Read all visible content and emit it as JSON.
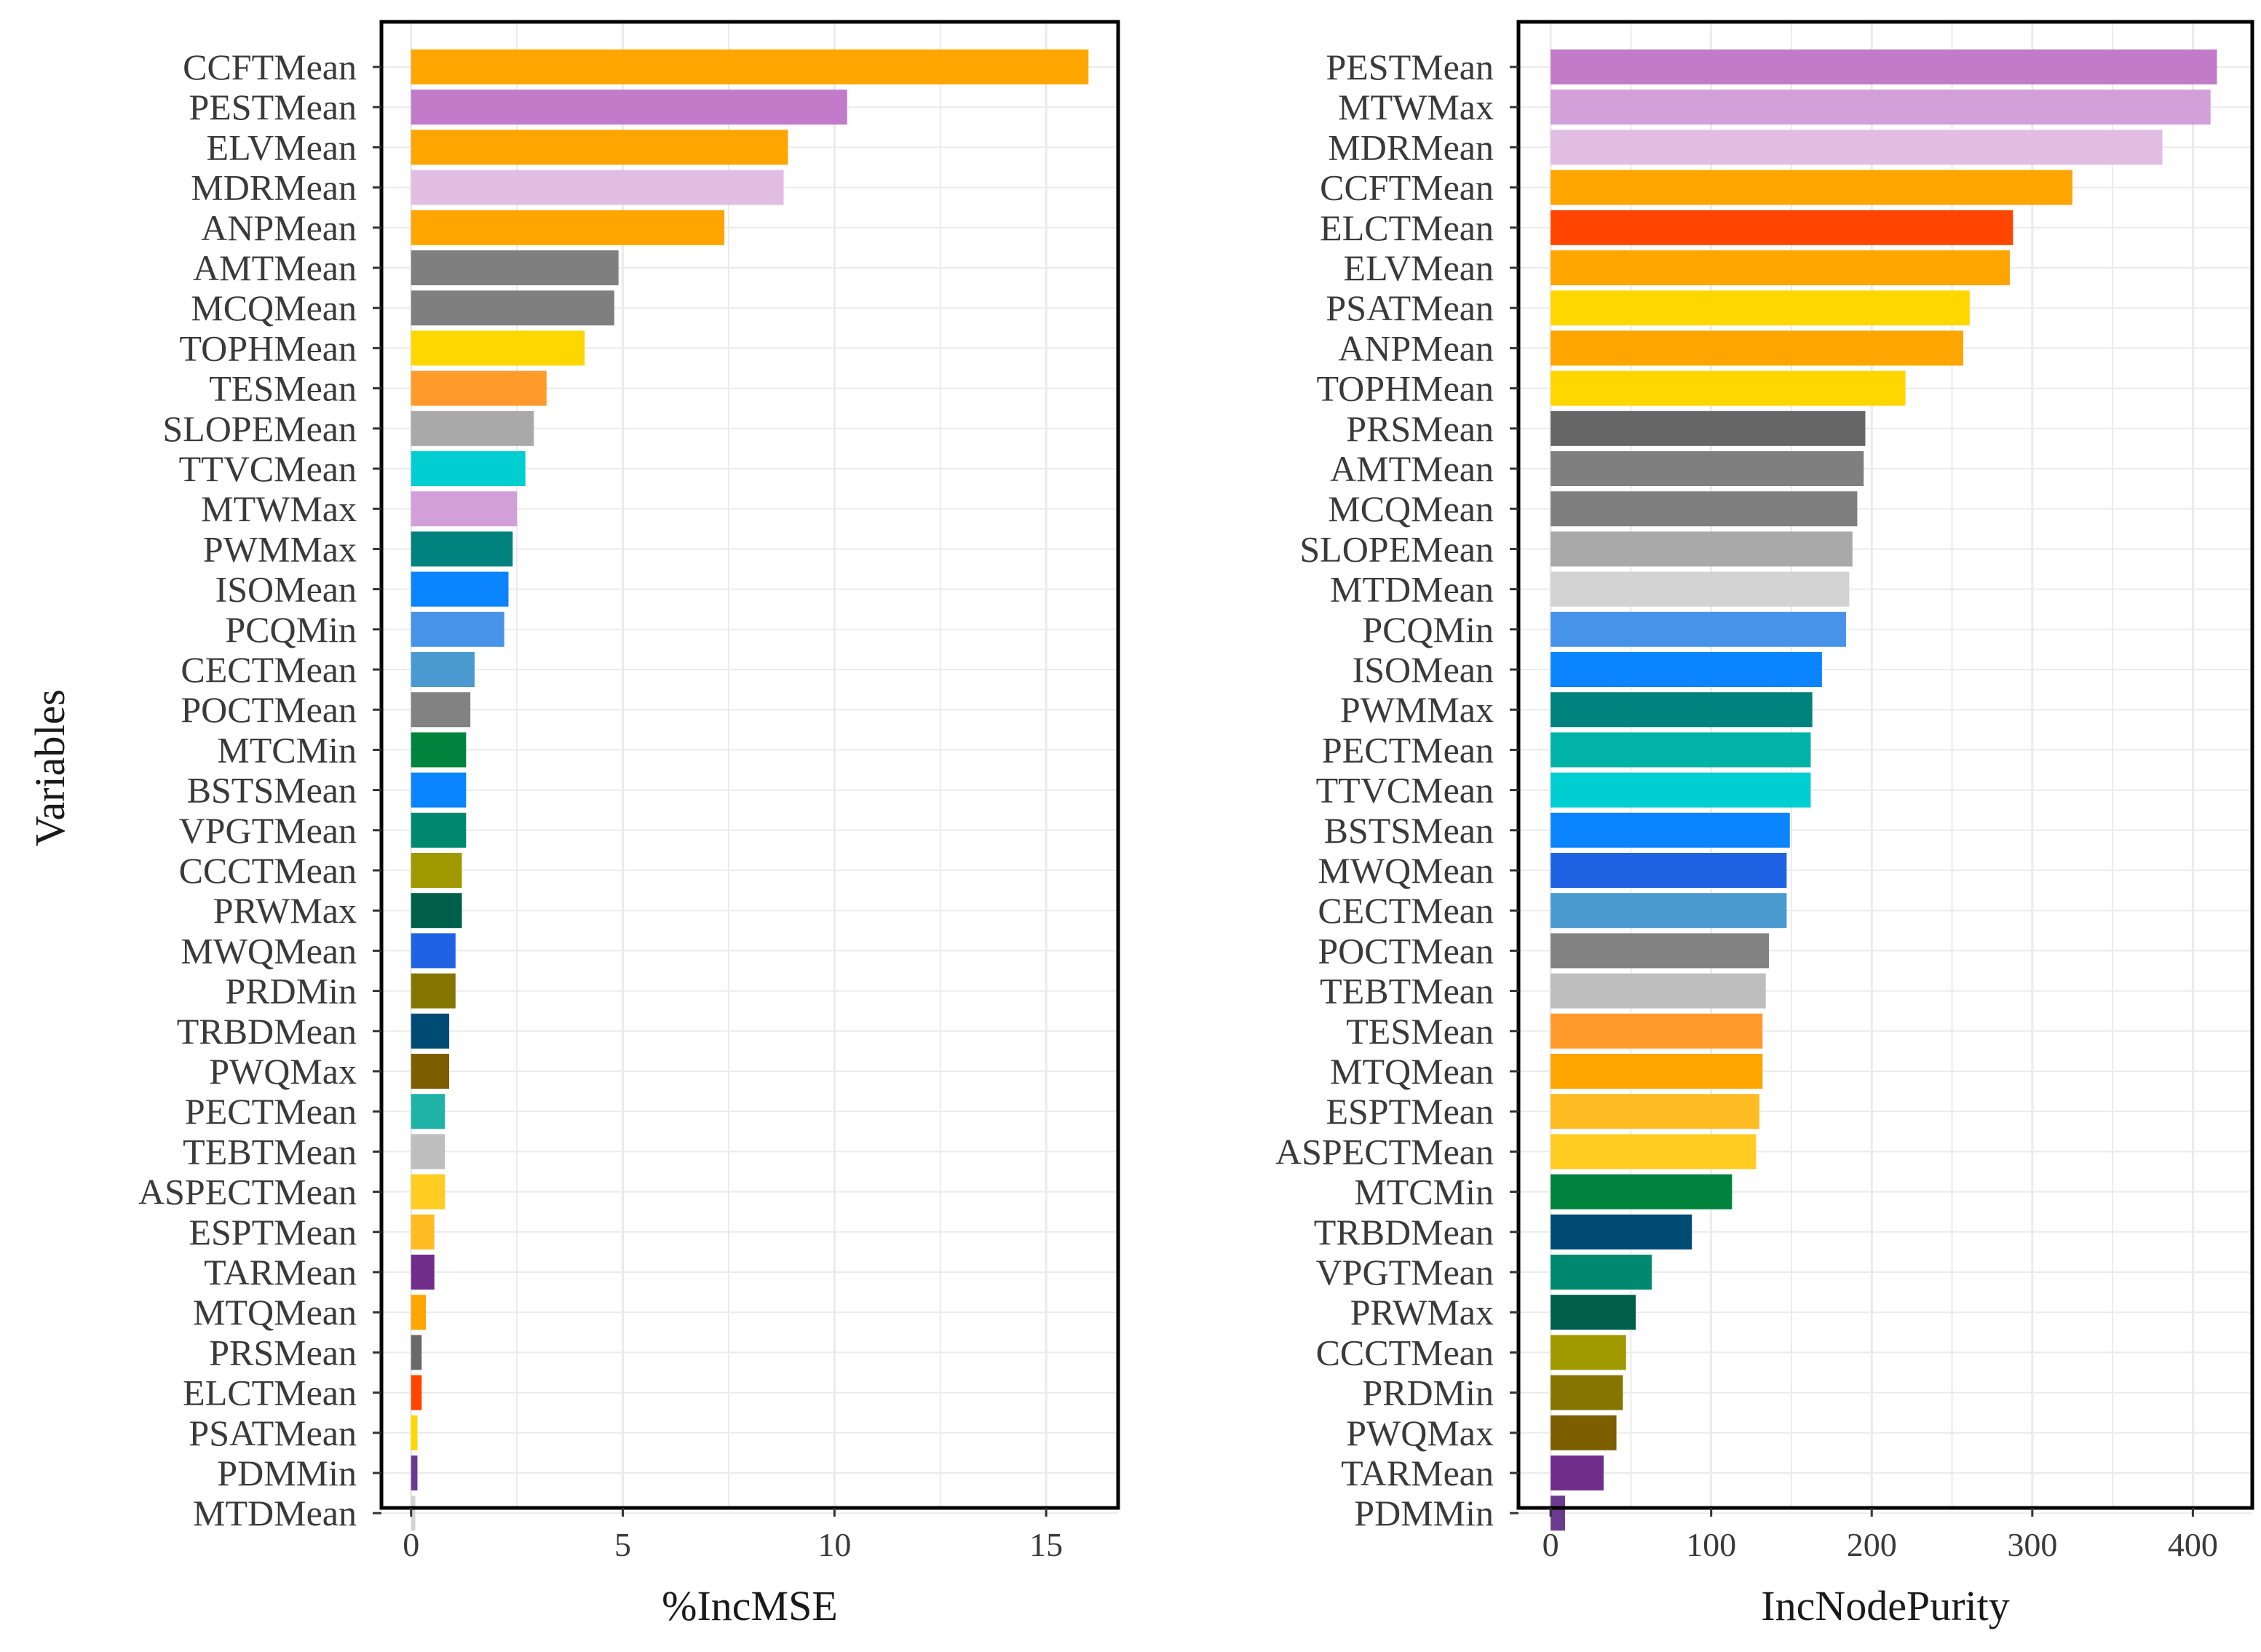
{
  "y_axis_title": "Variables",
  "chart_data": [
    {
      "type": "bar",
      "orientation": "horizontal",
      "xlabel": "%IncMSE",
      "ylabel": "Variables",
      "xlim": [
        -0.7,
        16.7
      ],
      "xticks": [
        0,
        5,
        10,
        15
      ],
      "grid": true,
      "categories": [
        "CCFTMean",
        "PESTMean",
        "ELVMean",
        "MDRMean",
        "ANPMean",
        "AMTMean",
        "MCQMean",
        "TOPHMean",
        "TESMean",
        "SLOPEMean",
        "TTVCMean",
        "MTWMax",
        "PWMMax",
        "ISOMean",
        "PCQMin",
        "CECTMean",
        "POCTMean",
        "MTCMin",
        "BSTSMean",
        "VPGTMean",
        "CCCTMean",
        "PRWMax",
        "MWQMean",
        "PRDMin",
        "TRBDMean",
        "PWQMax",
        "PECTMean",
        "TEBTMean",
        "ASPECTMean",
        "ESPTMean",
        "TARMean",
        "MTQMean",
        "PRSMean",
        "ELCTMean",
        "PSATMean",
        "PDMMin",
        "MTDMean"
      ],
      "values": [
        16.0,
        10.3,
        8.9,
        8.8,
        7.4,
        4.9,
        4.8,
        4.1,
        3.2,
        2.9,
        2.7,
        2.5,
        2.4,
        2.3,
        2.2,
        1.5,
        1.4,
        1.3,
        1.3,
        1.3,
        1.2,
        1.2,
        1.05,
        1.05,
        0.9,
        0.9,
        0.8,
        0.8,
        0.8,
        0.55,
        0.55,
        0.35,
        0.25,
        0.25,
        0.15,
        0.15,
        0.1
      ],
      "colors": [
        "#FFA500",
        "#C17BC9",
        "#FFA500",
        "#E2BDE3",
        "#FFA500",
        "#7F7F7F",
        "#7F7F7F",
        "#FFD700",
        "#FF9A2B",
        "#A9A9A9",
        "#00CED1",
        "#D29FD9",
        "#00827F",
        "#0A84FF",
        "#4793EA",
        "#4A99D0",
        "#828282",
        "#00833C",
        "#0A84FF",
        "#00896E",
        "#A09A00",
        "#005F4B",
        "#1F62E4",
        "#847600",
        "#004B73",
        "#7D5E00",
        "#1EB3A6",
        "#BEBEBE",
        "#FFCC22",
        "#FFBB22",
        "#702E8A",
        "#FFA500",
        "#696969",
        "#FF4500",
        "#FFD700",
        "#6B3A8E",
        "#D3D3D3"
      ]
    },
    {
      "type": "bar",
      "orientation": "horizontal",
      "xlabel": "IncNodePurity",
      "ylabel": "",
      "xlim": [
        -20,
        437
      ],
      "xticks": [
        0,
        100,
        200,
        300,
        400
      ],
      "grid": true,
      "categories": [
        "PESTMean",
        "MTWMax",
        "MDRMean",
        "CCFTMean",
        "ELCTMean",
        "ELVMean",
        "PSATMean",
        "ANPMean",
        "TOPHMean",
        "PRSMean",
        "AMTMean",
        "MCQMean",
        "SLOPEMean",
        "MTDMean",
        "PCQMin",
        "ISOMean",
        "PWMMax",
        "PECTMean",
        "TTVCMean",
        "BSTSMean",
        "MWQMean",
        "CECTMean",
        "POCTMean",
        "TEBTMean",
        "TESMean",
        "MTQMean",
        "ESPTMean",
        "ASPECTMean",
        "MTCMin",
        "TRBDMean",
        "VPGTMean",
        "PRWMax",
        "CCCTMean",
        "PRDMin",
        "PWQMax",
        "TARMean",
        "PDMMin"
      ],
      "values": [
        415,
        411,
        381,
        325,
        288,
        286,
        261,
        257,
        221,
        196,
        195,
        191,
        188,
        186,
        184,
        169,
        163,
        162,
        162,
        149,
        147,
        147,
        136,
        134,
        132,
        132,
        130,
        128,
        113,
        88,
        63,
        53,
        47,
        45,
        41,
        33,
        9
      ],
      "colors": [
        "#C17BC9",
        "#D29FD9",
        "#E2BDE3",
        "#FFA500",
        "#FF4500",
        "#FFA500",
        "#FFD700",
        "#FFA500",
        "#FFD700",
        "#666666",
        "#7F7F7F",
        "#7F7F7F",
        "#A9A9A9",
        "#D3D3D3",
        "#4793EA",
        "#0A84FF",
        "#00827F",
        "#00B3A6",
        "#00CED1",
        "#0A84FF",
        "#1F62E4",
        "#4A99D0",
        "#828282",
        "#BEBEBE",
        "#FF9A2B",
        "#FFA500",
        "#FFBB22",
        "#FFCC22",
        "#00833C",
        "#004B73",
        "#00896E",
        "#005F4B",
        "#A09A00",
        "#847600",
        "#7D5E00",
        "#702E8A",
        "#6B3A8E"
      ]
    }
  ]
}
